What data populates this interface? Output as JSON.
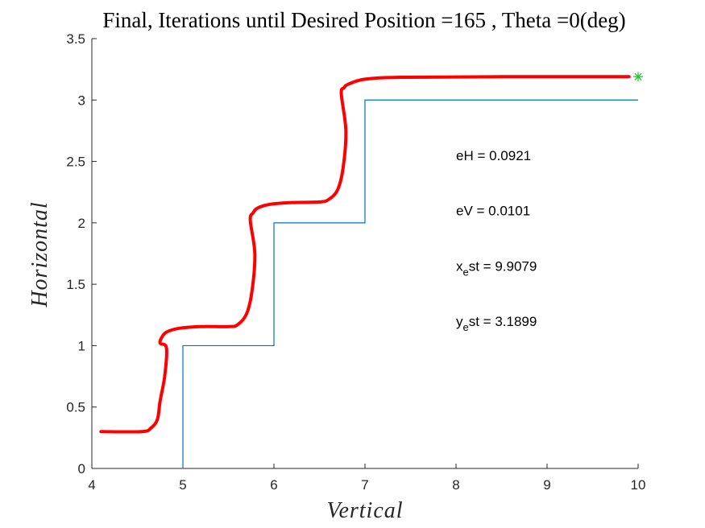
{
  "chart_data": {
    "type": "line",
    "title": "Final, Iterations until Desired Position =165 , Theta =0(deg)",
    "xlabel": "Vertical",
    "ylabel": "Horizontal",
    "xlim": [
      4,
      10
    ],
    "ylim": [
      0,
      3.5
    ],
    "xticks": [
      "4",
      "5",
      "6",
      "7",
      "8",
      "9",
      "10"
    ],
    "yticks": [
      "0",
      "0.5",
      "1",
      "1.5",
      "2",
      "2.5",
      "3",
      "3.5"
    ],
    "grid": false,
    "legend": "none",
    "series": [
      {
        "style": "thin-line",
        "color": "#0072BD",
        "x": [
          5,
          5,
          6,
          6,
          7,
          7,
          10
        ],
        "y": [
          0,
          1,
          1,
          2,
          2,
          3,
          3
        ]
      },
      {
        "style": "thick-line",
        "color": "#FF0000",
        "x": [
          4.1,
          4.55,
          4.65,
          4.72,
          4.75,
          4.8,
          4.82,
          4.75,
          4.77,
          4.82,
          4.95,
          5.2,
          5.5,
          5.6,
          5.7,
          5.76,
          5.79,
          5.74,
          5.77,
          5.82,
          5.95,
          6.2,
          6.5,
          6.6,
          6.7,
          6.76,
          6.79,
          6.74,
          6.77,
          6.82,
          7.0,
          7.4,
          8.5,
          9.9
        ],
        "y": [
          0.3,
          0.3,
          0.33,
          0.4,
          0.55,
          0.75,
          0.98,
          1.02,
          1.07,
          1.11,
          1.14,
          1.155,
          1.155,
          1.17,
          1.26,
          1.45,
          1.75,
          2.02,
          2.08,
          2.12,
          2.15,
          2.165,
          2.17,
          2.19,
          2.27,
          2.45,
          2.75,
          3.05,
          3.1,
          3.13,
          3.17,
          3.185,
          3.19,
          3.19
        ]
      },
      {
        "style": "marker-star",
        "color": "#22CC22",
        "x": [
          10
        ],
        "y": [
          3.19
        ]
      }
    ],
    "annotations": [
      {
        "text": "eH = 0.0921",
        "x": 8.0,
        "y": 2.55
      },
      {
        "text": "eV = 0.0101",
        "x": 8.0,
        "y": 2.1
      },
      {
        "text": "x",
        "sub": "e",
        "rest": "st = 9.9079",
        "x": 8.0,
        "y": 1.65
      },
      {
        "text": "y",
        "sub": "e",
        "rest": "st = 3.1899",
        "x": 8.0,
        "y": 1.2
      }
    ]
  }
}
